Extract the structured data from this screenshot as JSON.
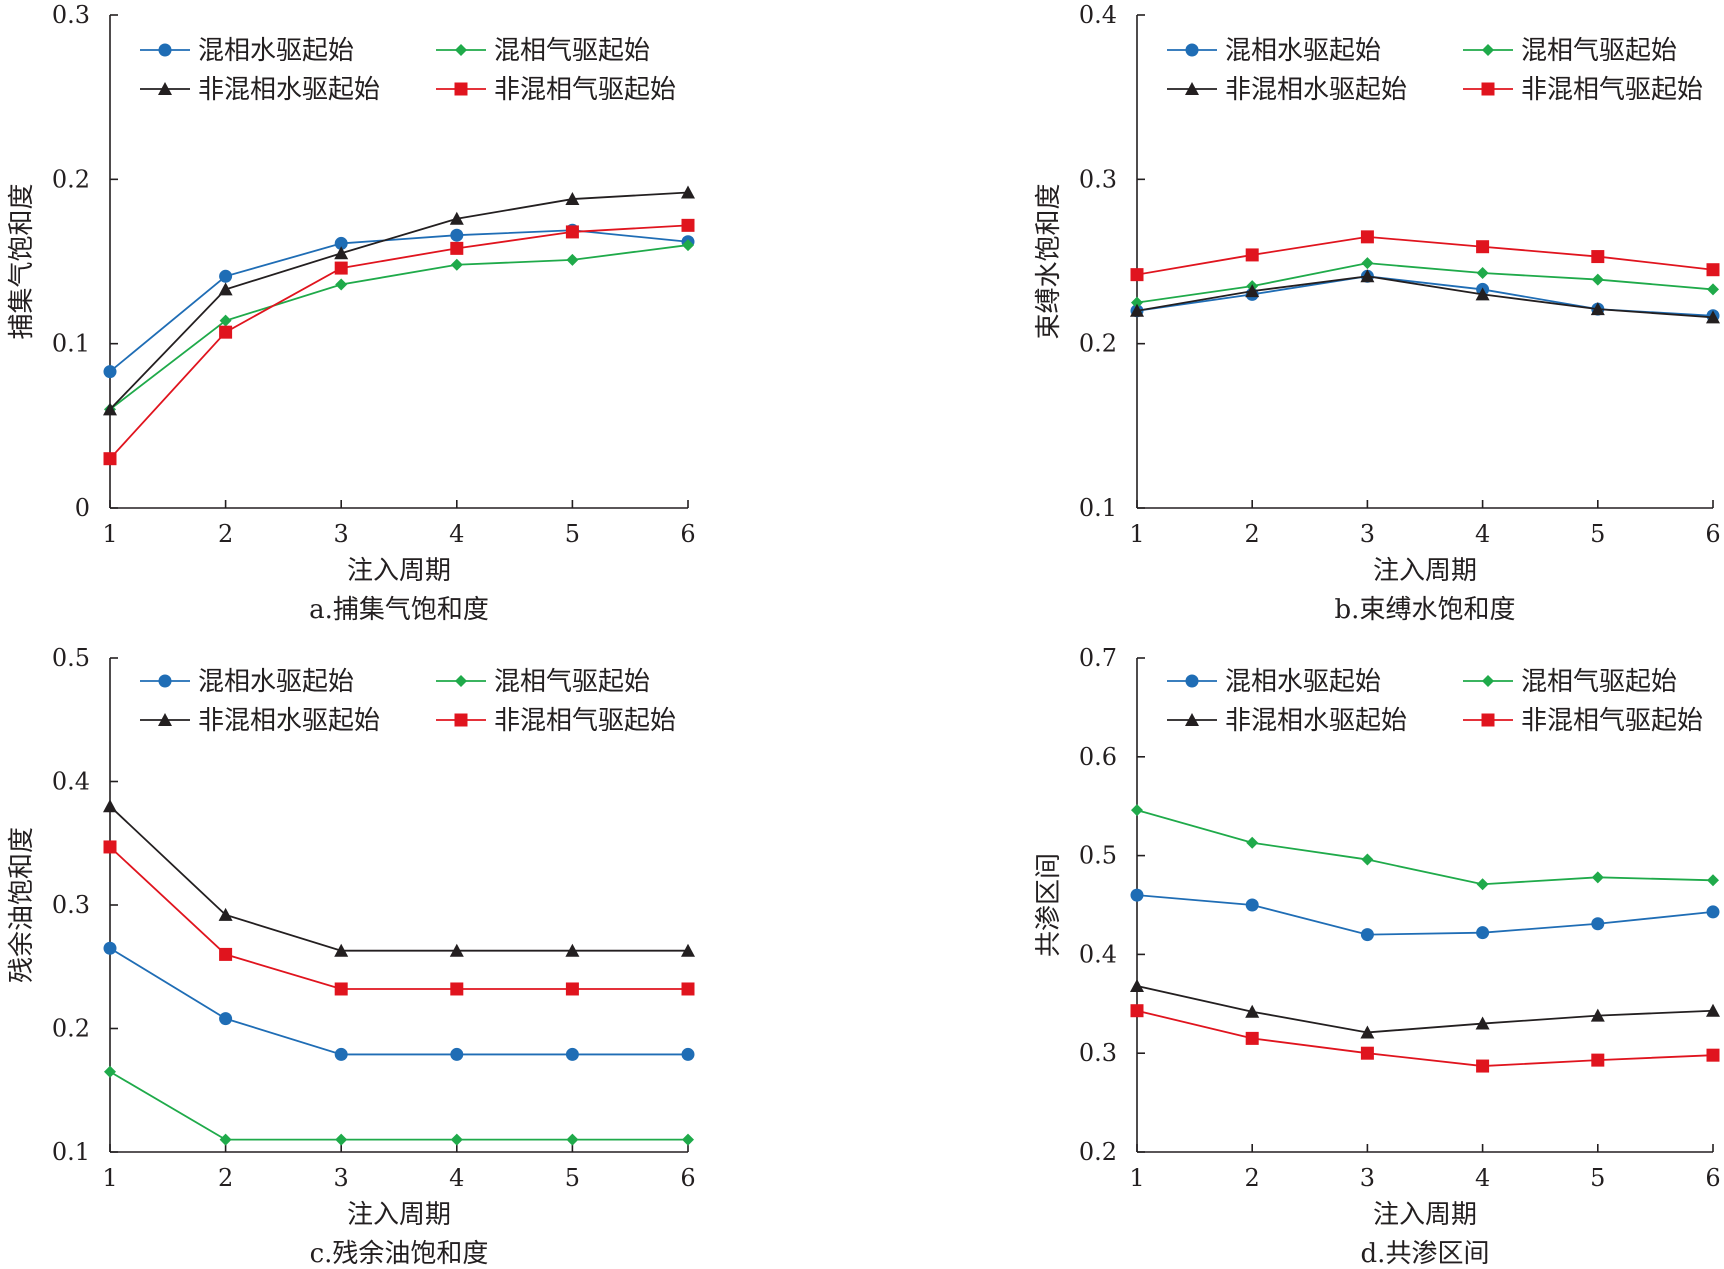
{
  "figure": {
    "panels": [
      {
        "caption": "a.捕集气饱和度"
      },
      {
        "caption": "b.束缚水饱和度"
      },
      {
        "caption": "c.残余油饱和度"
      },
      {
        "caption": "d.共渗区间"
      }
    ]
  },
  "series_styles": [
    {
      "name": "混相水驱起始",
      "color": "#1f6db5",
      "marker": "circle"
    },
    {
      "name": "混相气驱起始",
      "color": "#1faa4a",
      "marker": "diamond"
    },
    {
      "name": "非混相水驱起始",
      "color": "#231f20",
      "marker": "triangle"
    },
    {
      "name": "非混相气驱起始",
      "color": "#e0141e",
      "marker": "square"
    }
  ],
  "chart_data": [
    {
      "type": "line",
      "title": "a.捕集气饱和度",
      "xlabel": "注入周期",
      "ylabel": "捕集气饱和度",
      "x": [
        1,
        2,
        3,
        4,
        5,
        6
      ],
      "xticks": [
        "1",
        "2",
        "3",
        "4",
        "5",
        "6"
      ],
      "xlim": [
        1,
        6
      ],
      "ylim": [
        0,
        0.3
      ],
      "yticks": [
        "0",
        "0.1",
        "0.2",
        "0.3"
      ],
      "yticks_values": [
        0,
        0.1,
        0.2,
        0.3
      ],
      "grid": false,
      "legend_position": "top",
      "series": [
        {
          "name": "混相水驱起始",
          "values": [
            0.083,
            0.141,
            0.161,
            0.166,
            0.169,
            0.162
          ]
        },
        {
          "name": "混相气驱起始",
          "values": [
            0.06,
            0.114,
            0.136,
            0.148,
            0.151,
            0.16
          ]
        },
        {
          "name": "非混相水驱起始",
          "values": [
            0.06,
            0.133,
            0.155,
            0.176,
            0.188,
            0.192
          ]
        },
        {
          "name": "非混相气驱起始",
          "values": [
            0.03,
            0.107,
            0.146,
            0.158,
            0.168,
            0.172
          ]
        }
      ]
    },
    {
      "type": "line",
      "title": "b.束缚水饱和度",
      "xlabel": "注入周期",
      "ylabel": "束缚水饱和度",
      "x": [
        1,
        2,
        3,
        4,
        5,
        6
      ],
      "xticks": [
        "1",
        "2",
        "3",
        "4",
        "5",
        "6"
      ],
      "xlim": [
        1,
        6
      ],
      "ylim": [
        0.1,
        0.4
      ],
      "yticks": [
        "0.1",
        "0.2",
        "0.3",
        "0.4"
      ],
      "yticks_values": [
        0.1,
        0.2,
        0.3,
        0.4
      ],
      "grid": false,
      "legend_position": "top",
      "series": [
        {
          "name": "混相水驱起始",
          "values": [
            0.22,
            0.23,
            0.241,
            0.233,
            0.221,
            0.217
          ]
        },
        {
          "name": "混相气驱起始",
          "values": [
            0.225,
            0.235,
            0.249,
            0.243,
            0.239,
            0.233
          ]
        },
        {
          "name": "非混相水驱起始",
          "values": [
            0.22,
            0.232,
            0.241,
            0.23,
            0.221,
            0.216
          ]
        },
        {
          "name": "非混相气驱起始",
          "values": [
            0.242,
            0.254,
            0.265,
            0.259,
            0.253,
            0.245
          ]
        }
      ]
    },
    {
      "type": "line",
      "title": "c.残余油饱和度",
      "xlabel": "注入周期",
      "ylabel": "残余油饱和度",
      "x": [
        1,
        2,
        3,
        4,
        5,
        6
      ],
      "xticks": [
        "1",
        "2",
        "3",
        "4",
        "5",
        "6"
      ],
      "xlim": [
        1,
        6
      ],
      "ylim": [
        0.1,
        0.5
      ],
      "yticks": [
        "0.1",
        "0.2",
        "0.3",
        "0.4",
        "0.5"
      ],
      "yticks_values": [
        0.1,
        0.2,
        0.3,
        0.4,
        0.5
      ],
      "grid": false,
      "legend_position": "top",
      "series": [
        {
          "name": "混相水驱起始",
          "values": [
            0.265,
            0.208,
            0.179,
            0.179,
            0.179,
            0.179
          ]
        },
        {
          "name": "混相气驱起始",
          "values": [
            0.165,
            0.11,
            0.11,
            0.11,
            0.11,
            0.11
          ]
        },
        {
          "name": "非混相水驱起始",
          "values": [
            0.38,
            0.292,
            0.263,
            0.263,
            0.263,
            0.263
          ]
        },
        {
          "name": "非混相气驱起始",
          "values": [
            0.347,
            0.26,
            0.232,
            0.232,
            0.232,
            0.232
          ]
        }
      ]
    },
    {
      "type": "line",
      "title": "d.共渗区间",
      "xlabel": "注入周期",
      "ylabel": "共渗区间",
      "x": [
        1,
        2,
        3,
        4,
        5,
        6
      ],
      "xticks": [
        "1",
        "2",
        "3",
        "4",
        "5",
        "6"
      ],
      "xlim": [
        1,
        6
      ],
      "ylim": [
        0.2,
        0.7
      ],
      "yticks": [
        "0.2",
        "0.3",
        "0.4",
        "0.5",
        "0.6",
        "0.7"
      ],
      "yticks_values": [
        0.2,
        0.3,
        0.4,
        0.5,
        0.6,
        0.7
      ],
      "grid": false,
      "legend_position": "top",
      "series": [
        {
          "name": "混相水驱起始",
          "values": [
            0.46,
            0.45,
            0.42,
            0.422,
            0.431,
            0.443
          ]
        },
        {
          "name": "混相气驱起始",
          "values": [
            0.546,
            0.513,
            0.496,
            0.471,
            0.478,
            0.475
          ]
        },
        {
          "name": "非混相水驱起始",
          "values": [
            0.368,
            0.342,
            0.321,
            0.33,
            0.338,
            0.343
          ]
        },
        {
          "name": "非混相气驱起始",
          "values": [
            0.343,
            0.315,
            0.3,
            0.287,
            0.293,
            0.298
          ]
        }
      ]
    }
  ]
}
